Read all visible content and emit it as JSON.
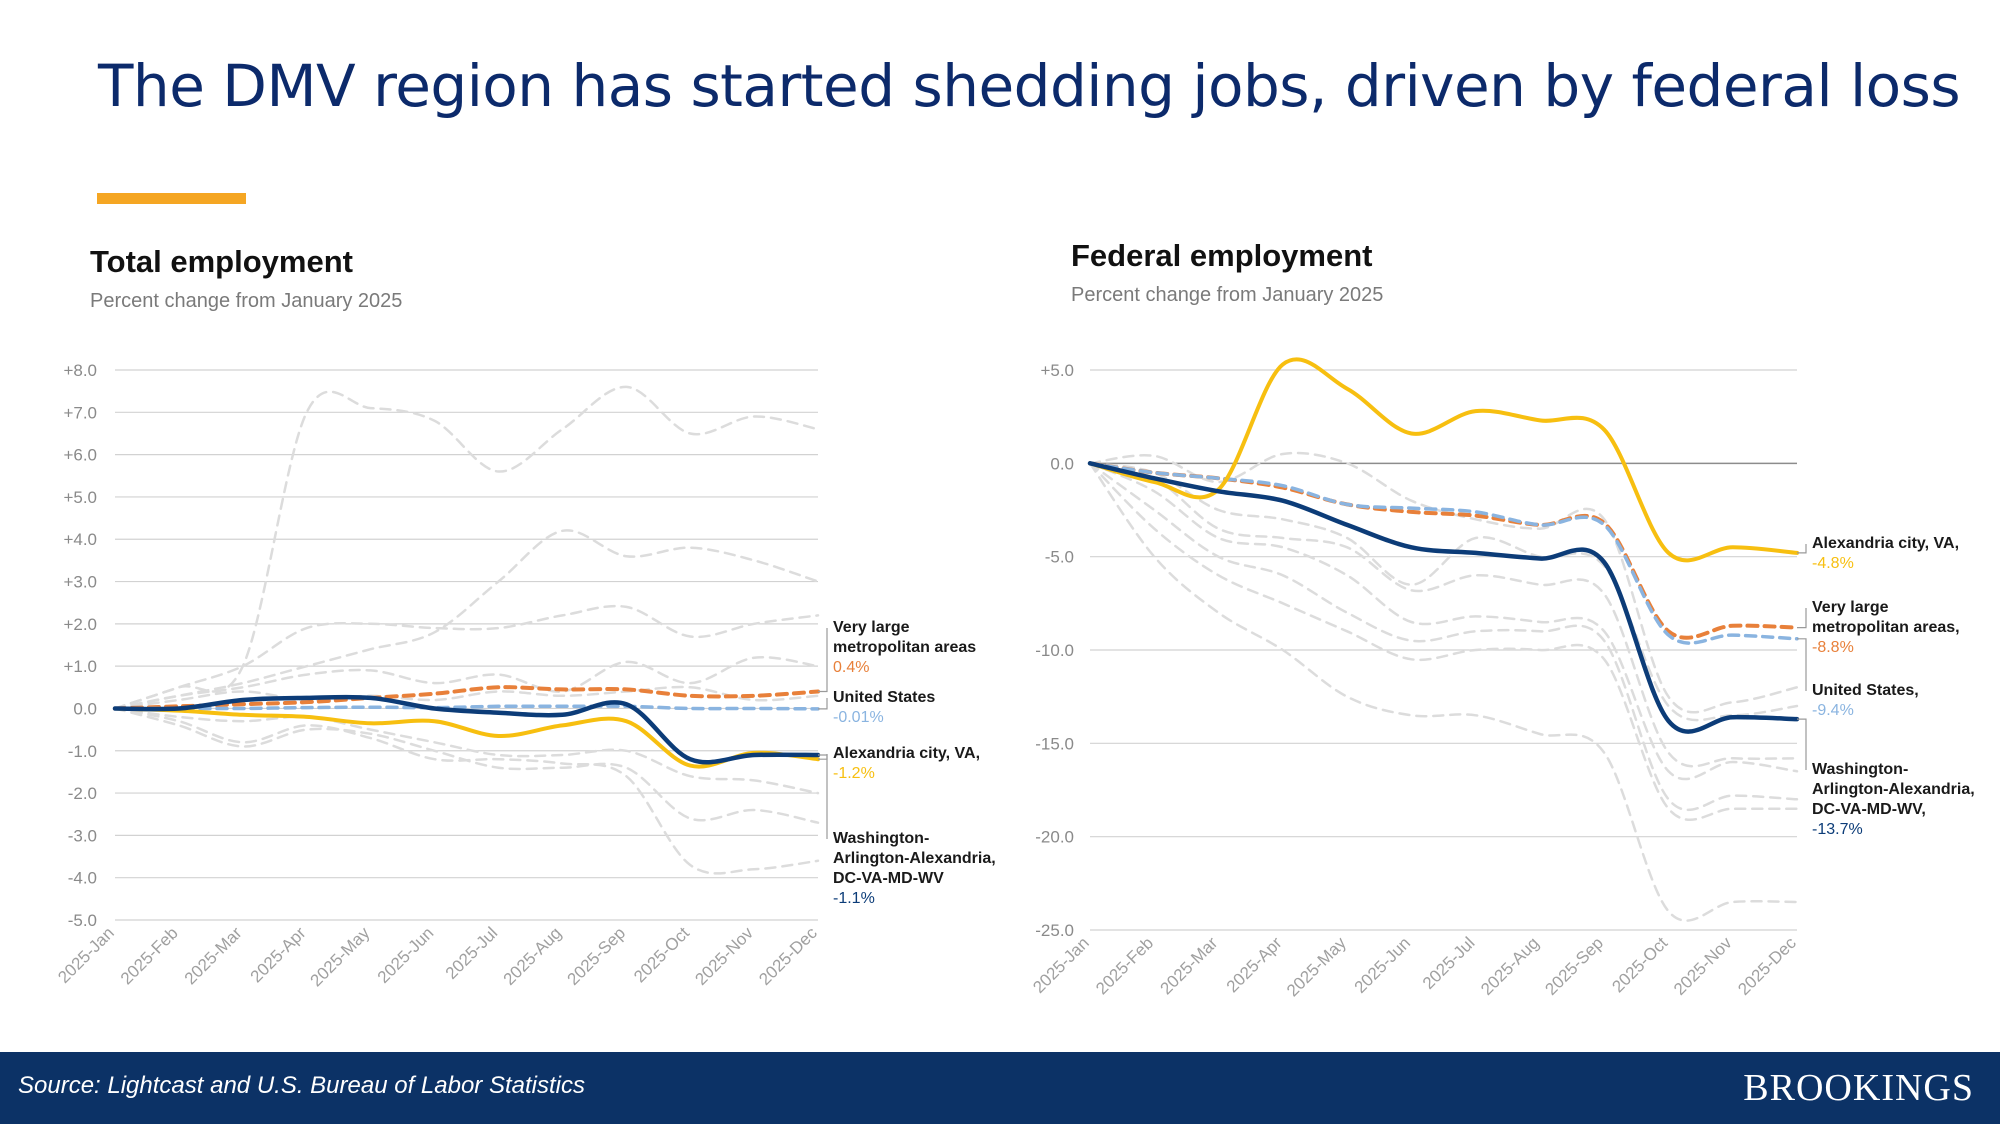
{
  "headline": "The DMV region has started shedding jobs, driven by federal loss",
  "colors": {
    "navy": "#0c2a6b",
    "accent": "#f5a623",
    "dmv": "#0c3c78",
    "alexandria": "#f7bf10",
    "very_large": "#e8803a",
    "us": "#8ab4e0",
    "other": "#dcdcdc",
    "footer": "#0c3266"
  },
  "footer": {
    "source": "Source: Lightcast and U.S. Bureau of Labor Statistics",
    "logo": "BROOKINGS"
  },
  "chart_data": [
    {
      "type": "line",
      "title": "Total employment",
      "subtitle": "Percent change from January 2025",
      "categories": [
        "2025-Jan",
        "2025-Feb",
        "2025-Mar",
        "2025-Apr",
        "2025-May",
        "2025-Jun",
        "2025-Jul",
        "2025-Aug",
        "2025-Sep",
        "2025-Oct",
        "2025-Nov",
        "2025-Dec"
      ],
      "y_ticks": [
        8,
        7,
        6,
        5,
        4,
        3,
        2,
        1,
        0,
        -1,
        -2,
        -3,
        -4,
        -5
      ],
      "y_tick_labels": [
        "+8.0",
        "+7.0",
        "+6.0",
        "+5.0",
        "+4.0",
        "+3.0",
        "+2.0",
        "+1.0",
        "0.0",
        "-1.0",
        "-2.0",
        "-3.0",
        "-4.0",
        "-5.0"
      ],
      "ylim": [
        -5,
        8
      ],
      "zero_line": false,
      "series": [
        {
          "name": "Other jurisdiction 1",
          "role": "other",
          "values": [
            0,
            0.5,
            1.0,
            7.0,
            7.1,
            6.8,
            5.6,
            6.6,
            7.6,
            6.5,
            6.9,
            6.6
          ]
        },
        {
          "name": "Other jurisdiction 2",
          "role": "other",
          "values": [
            0,
            0.3,
            0.6,
            1.0,
            1.4,
            1.8,
            3.0,
            4.2,
            3.6,
            3.8,
            3.5,
            3.0
          ]
        },
        {
          "name": "Other jurisdiction 3",
          "role": "other",
          "values": [
            0,
            0.5,
            1.0,
            1.9,
            2.0,
            1.9,
            1.9,
            2.2,
            2.4,
            1.7,
            2.0,
            2.2
          ]
        },
        {
          "name": "Other jurisdiction 4",
          "role": "other",
          "values": [
            0,
            0.3,
            0.5,
            0.8,
            0.9,
            0.6,
            0.8,
            0.4,
            1.1,
            0.6,
            1.2,
            1.0
          ]
        },
        {
          "name": "Other jurisdiction 5",
          "role": "other",
          "values": [
            0,
            0.2,
            0.4,
            0.2,
            0.3,
            0.2,
            0.4,
            0.3,
            0.4,
            0.5,
            0.2,
            0.3
          ]
        },
        {
          "name": "Other jurisdiction 6",
          "role": "other",
          "values": [
            0,
            -0.2,
            -0.3,
            -0.2,
            -0.5,
            -0.8,
            -1.1,
            -1.1,
            -1.0,
            -1.6,
            -1.7,
            -2.0
          ]
        },
        {
          "name": "Other jurisdiction 7",
          "role": "other",
          "values": [
            0,
            -0.4,
            -0.9,
            -0.5,
            -0.6,
            -1.0,
            -1.4,
            -1.4,
            -1.4,
            -2.6,
            -2.4,
            -2.7
          ]
        },
        {
          "name": "Other jurisdiction 8",
          "role": "other",
          "values": [
            0,
            -0.3,
            -0.8,
            -0.4,
            -0.7,
            -1.2,
            -1.2,
            -1.3,
            -1.6,
            -3.7,
            -3.8,
            -3.6
          ]
        },
        {
          "name": "Very large metropolitan areas",
          "role": "very_large",
          "values": [
            0,
            0.05,
            0.1,
            0.15,
            0.25,
            0.35,
            0.5,
            0.45,
            0.45,
            0.3,
            0.3,
            0.4
          ]
        },
        {
          "name": "United States",
          "role": "us",
          "values": [
            0,
            0.0,
            0.0,
            0.02,
            0.03,
            0.02,
            0.05,
            0.05,
            0.05,
            0.0,
            0.0,
            -0.01
          ]
        },
        {
          "name": "Alexandria city, VA",
          "role": "alexandria",
          "values": [
            0,
            -0.05,
            -0.15,
            -0.2,
            -0.35,
            -0.3,
            -0.65,
            -0.4,
            -0.3,
            -1.35,
            -1.05,
            -1.2
          ]
        },
        {
          "name": "Washington-Arlington-Alexandria, DC-VA-MD-WV",
          "role": "dmv",
          "values": [
            0,
            0.0,
            0.2,
            0.25,
            0.25,
            0.0,
            -0.1,
            -0.15,
            0.1,
            -1.2,
            -1.1,
            -1.1
          ]
        }
      ],
      "annotations": [
        {
          "lines": [
            "Very large",
            "metropolitan areas"
          ],
          "value": "0.4%",
          "role": "very_large",
          "points_to": 0.4
        },
        {
          "lines": [
            "United States"
          ],
          "value": "-0.01%",
          "role": "us",
          "points_to": -0.01
        },
        {
          "lines": [
            "Alexandria city, VA,"
          ],
          "value": "-1.2%",
          "role": "alexandria",
          "points_to": -1.2
        },
        {
          "lines": [
            "Washington-",
            "Arlington-Alexandria,",
            "DC-VA-MD-WV"
          ],
          "value": "-1.1%",
          "role": "dmv",
          "points_to": -1.1
        }
      ]
    },
    {
      "type": "line",
      "title": "Federal employment",
      "subtitle": "Percent change from January 2025",
      "categories": [
        "2025-Jan",
        "2025-Feb",
        "2025-Mar",
        "2025-Apr",
        "2025-May",
        "2025-Jun",
        "2025-Jul",
        "2025-Aug",
        "2025-Sep",
        "2025-Oct",
        "2025-Nov",
        "2025-Dec"
      ],
      "y_ticks": [
        5,
        0,
        -5,
        -10,
        -15,
        -20,
        -25
      ],
      "y_tick_labels": [
        "+5.0",
        "0.0",
        "-5.0",
        "-10.0",
        "-15.0",
        "-20.0",
        "-25.0"
      ],
      "ylim": [
        -25,
        5
      ],
      "zero_line": true,
      "series": [
        {
          "name": "Other jurisdiction 1",
          "role": "other",
          "values": [
            0,
            0.4,
            -1.0,
            0.5,
            0.0,
            -2.0,
            -3.0,
            -3.5,
            -3.0,
            -12.5,
            -12.8,
            -12.0
          ]
        },
        {
          "name": "Other jurisdiction 2",
          "role": "other",
          "values": [
            0,
            -0.5,
            -2.5,
            -3.0,
            -4.0,
            -6.5,
            -4.0,
            -5.0,
            -5.5,
            -13.0,
            -13.5,
            -13.0
          ]
        },
        {
          "name": "Other jurisdiction 3",
          "role": "other",
          "values": [
            0,
            -0.8,
            -3.5,
            -4.0,
            -4.5,
            -6.8,
            -6.0,
            -6.5,
            -7.0,
            -15.5,
            -15.8,
            -15.8
          ]
        },
        {
          "name": "Other jurisdiction 4",
          "role": "other",
          "values": [
            0,
            -1.5,
            -4.0,
            -4.5,
            -6.0,
            -8.5,
            -8.2,
            -8.5,
            -9.0,
            -16.5,
            -16.0,
            -16.5
          ]
        },
        {
          "name": "Other jurisdiction 5",
          "role": "other",
          "values": [
            0,
            -2.5,
            -5.0,
            -6.0,
            -8.0,
            -9.5,
            -9.0,
            -9.0,
            -9.5,
            -18.0,
            -17.8,
            -18.0
          ]
        },
        {
          "name": "Other jurisdiction 6",
          "role": "other",
          "values": [
            0,
            -3.5,
            -6.0,
            -7.5,
            -9.0,
            -10.5,
            -10.0,
            -10.0,
            -10.5,
            -18.5,
            -18.5,
            -18.5
          ]
        },
        {
          "name": "Other jurisdiction 7",
          "role": "other",
          "values": [
            0,
            -5.0,
            -8.0,
            -10.0,
            -12.5,
            -13.5,
            -13.5,
            -14.5,
            -15.5,
            -24.0,
            -23.5,
            -23.5
          ]
        },
        {
          "name": "Very large metropolitan areas",
          "role": "very_large",
          "values": [
            0,
            -0.5,
            -0.8,
            -1.3,
            -2.2,
            -2.6,
            -2.8,
            -3.3,
            -3.2,
            -9.0,
            -8.7,
            -8.8
          ]
        },
        {
          "name": "United States",
          "role": "us",
          "values": [
            0,
            -0.5,
            -0.8,
            -1.2,
            -2.2,
            -2.4,
            -2.6,
            -3.3,
            -3.3,
            -9.2,
            -9.2,
            -9.4
          ]
        },
        {
          "name": "Alexandria city, VA",
          "role": "alexandria",
          "values": [
            0,
            -1.0,
            -1.4,
            5.3,
            4.0,
            1.6,
            2.8,
            2.3,
            1.8,
            -4.8,
            -4.5,
            -4.8
          ]
        },
        {
          "name": "Washington-Arlington-Alexandria, DC-VA-MD-WV",
          "role": "dmv",
          "values": [
            0,
            -0.8,
            -1.5,
            -2.0,
            -3.3,
            -4.5,
            -4.8,
            -5.1,
            -5.3,
            -13.8,
            -13.6,
            -13.7
          ]
        }
      ],
      "annotations": [
        {
          "lines": [
            "Alexandria city, VA,"
          ],
          "value": "-4.8%",
          "role": "alexandria",
          "points_to": -4.8
        },
        {
          "lines": [
            "Very large",
            "metropolitan areas,"
          ],
          "value": "-8.8%",
          "role": "very_large",
          "points_to": -8.8
        },
        {
          "lines": [
            "United States,"
          ],
          "value": "-9.4%",
          "role": "us",
          "points_to": -9.4
        },
        {
          "lines": [
            "Washington-",
            "Arlington-Alexandria,",
            "DC-VA-MD-WV,"
          ],
          "value": "-13.7%",
          "role": "dmv",
          "points_to": -13.7
        }
      ]
    }
  ]
}
